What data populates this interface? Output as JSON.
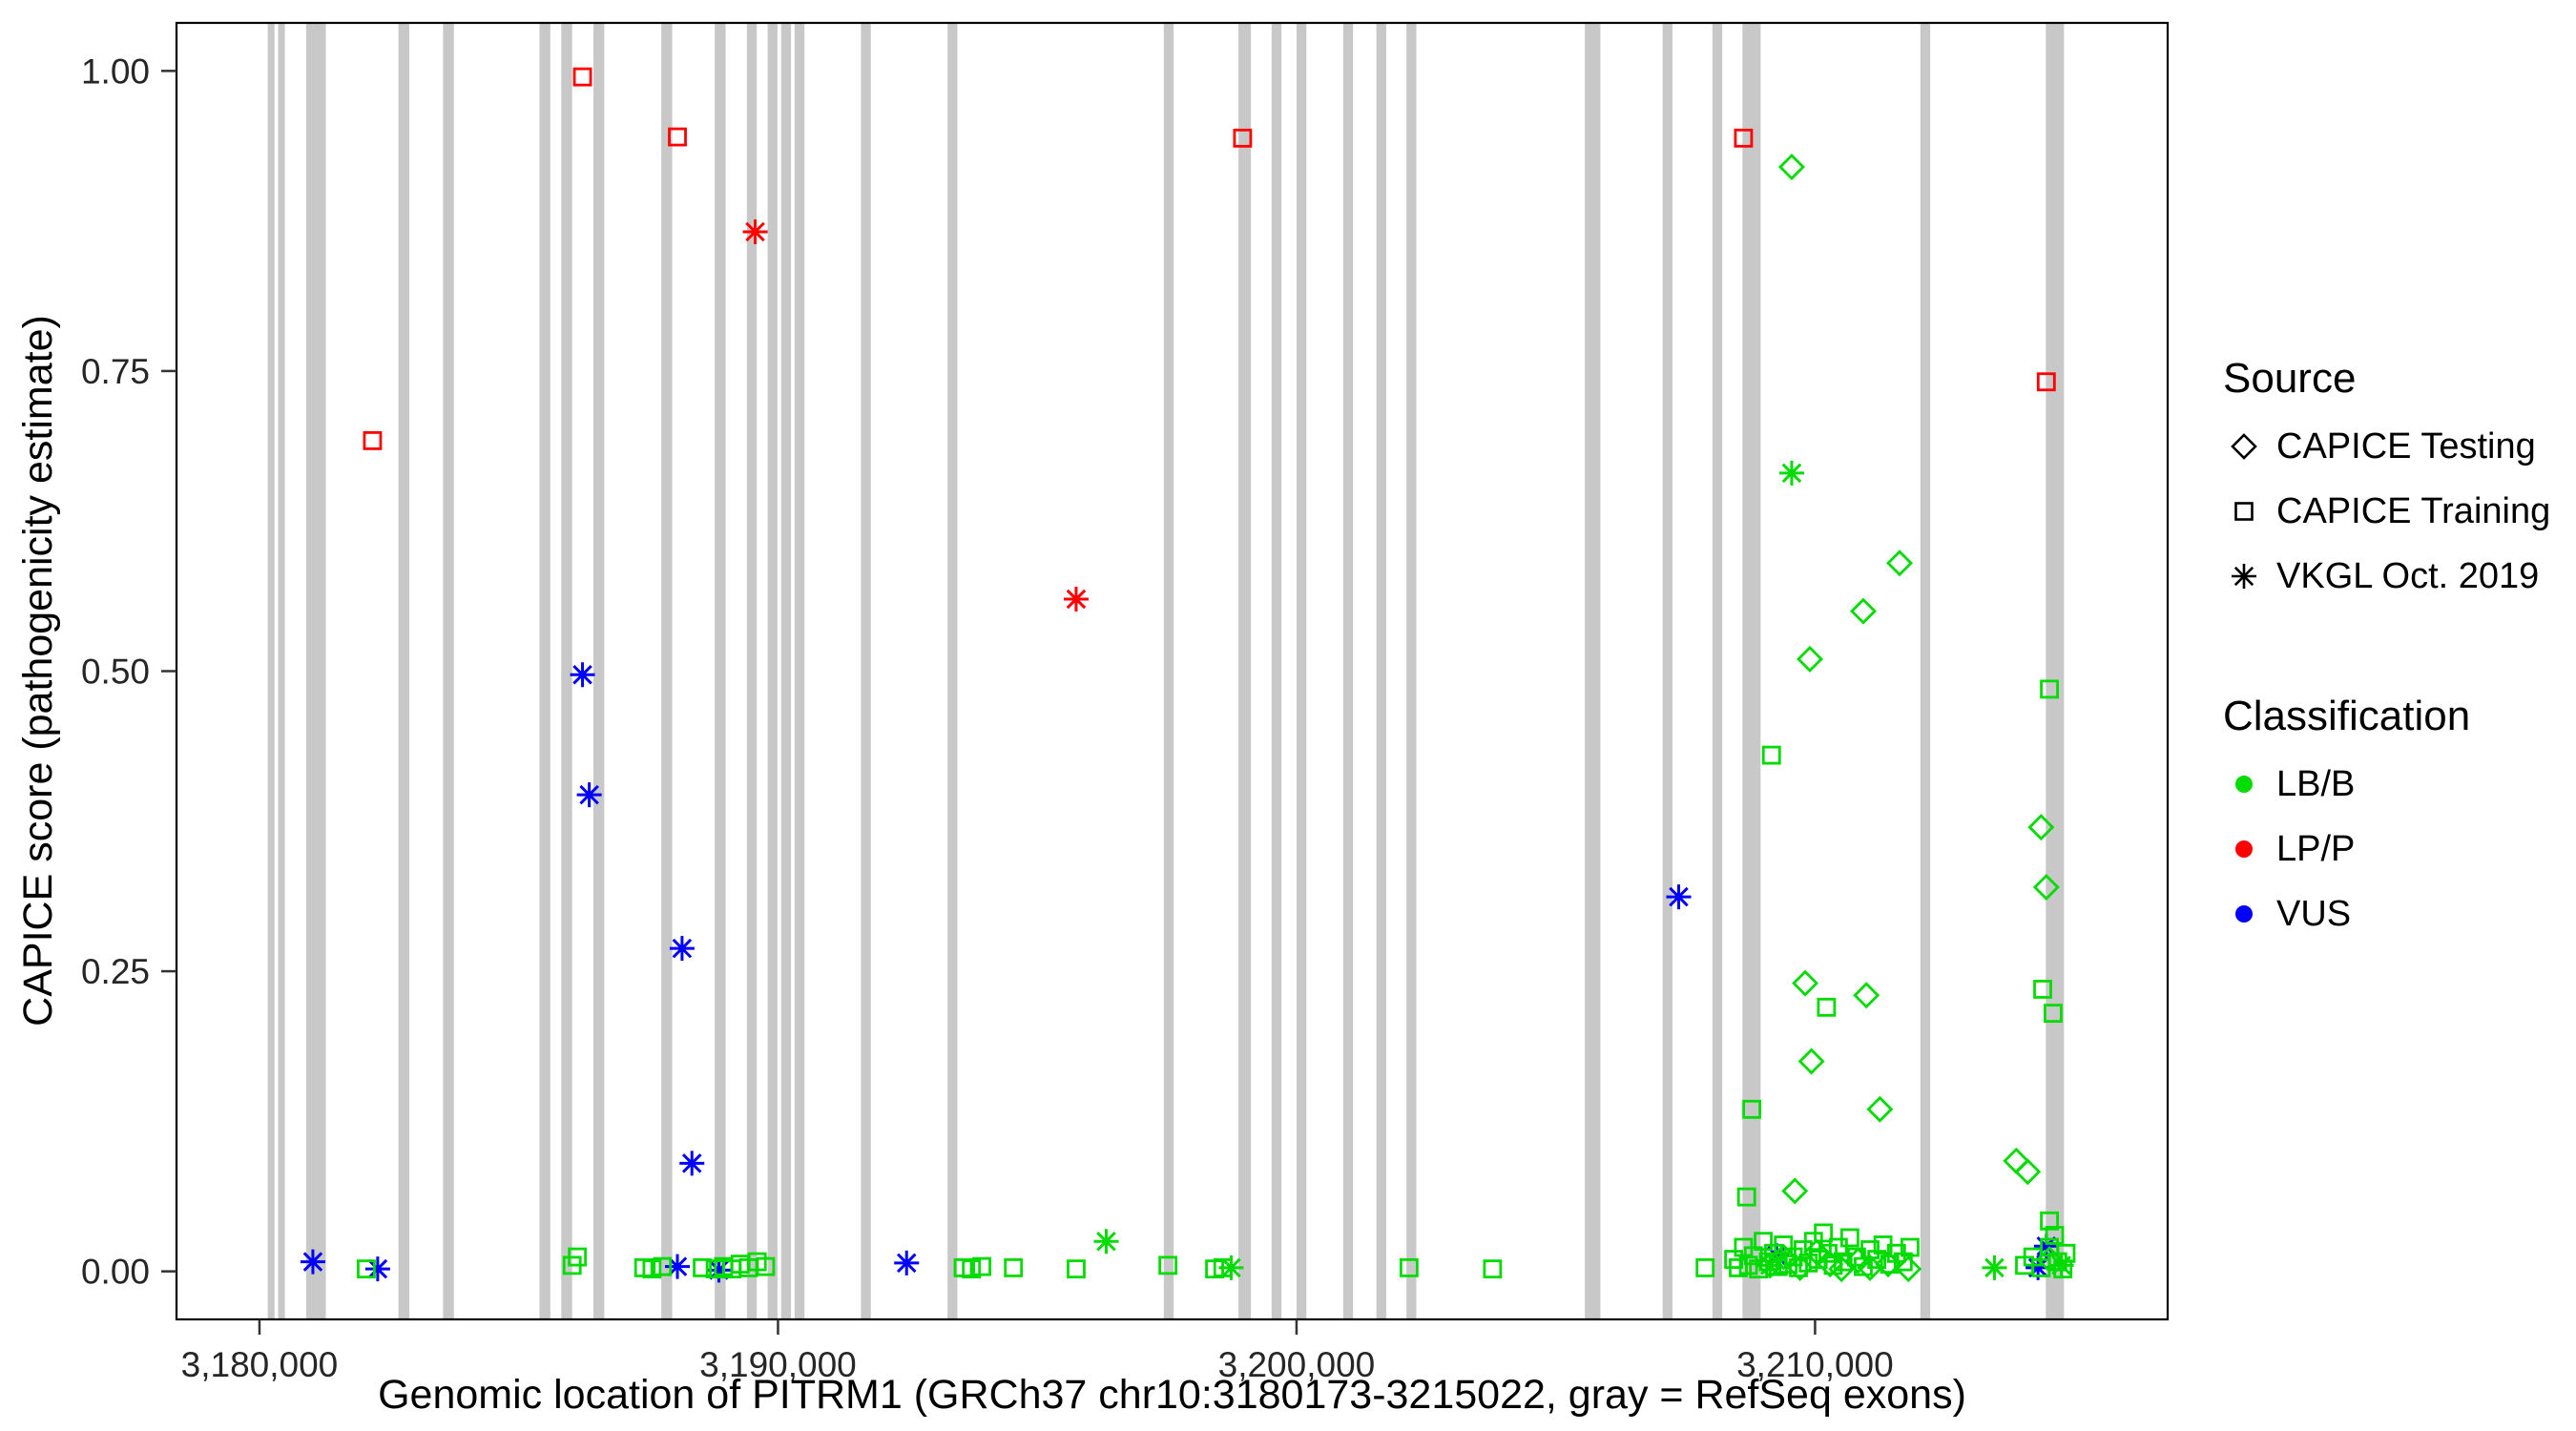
{
  "chart_data": {
    "type": "scatter",
    "title": "",
    "xlabel": "Genomic location of PITRM1 (GRCh37 chr10:3180173-3215022, gray = RefSeq exons)",
    "ylabel": "CAPICE score (pathogenicity estimate)",
    "xlim": [
      3178400,
      3216800
    ],
    "ylim": [
      -0.04,
      1.04
    ],
    "grid": false,
    "x_ticks": [
      {
        "value": 3180000,
        "label": "3,180,000"
      },
      {
        "value": 3190000,
        "label": "3,190,000"
      },
      {
        "value": 3200000,
        "label": "3,200,000"
      },
      {
        "value": 3210000,
        "label": "3,210,000"
      }
    ],
    "y_ticks": [
      {
        "value": 0.0,
        "label": "0.00"
      },
      {
        "value": 0.25,
        "label": "0.25"
      },
      {
        "value": 0.5,
        "label": "0.50"
      },
      {
        "value": 0.75,
        "label": "0.75"
      },
      {
        "value": 1.0,
        "label": "1.00"
      }
    ],
    "exon_color": "#C8C8C8",
    "colors": {
      "LB/B": "#00DC00",
      "LP/P": "#FF0000",
      "VUS": "#0000FF"
    },
    "shapes": {
      "CAPICE Testing": "diamond",
      "CAPICE Training": "square",
      "VKGL Oct. 2019": "asterisk"
    },
    "legend": {
      "source": {
        "title": "Source",
        "items": [
          {
            "label": "CAPICE Testing",
            "shape": "diamond"
          },
          {
            "label": "CAPICE Training",
            "shape": "square"
          },
          {
            "label": "VKGL Oct. 2019",
            "shape": "asterisk"
          }
        ]
      },
      "classification": {
        "title": "Classification",
        "items": [
          {
            "label": "LB/B",
            "color": "#00DC00"
          },
          {
            "label": "LP/P",
            "color": "#FF0000"
          },
          {
            "label": "VUS",
            "color": "#0000FF"
          }
        ]
      }
    },
    "exons": [
      [
        3180160,
        3180290
      ],
      [
        3180360,
        3180490
      ],
      [
        3180900,
        3181280
      ],
      [
        3182680,
        3182890
      ],
      [
        3183540,
        3183750
      ],
      [
        3185400,
        3185610
      ],
      [
        3185820,
        3186030
      ],
      [
        3186440,
        3186650
      ],
      [
        3187750,
        3187960
      ],
      [
        3188780,
        3188990
      ],
      [
        3189400,
        3189590
      ],
      [
        3189800,
        3189990
      ],
      [
        3190060,
        3190250
      ],
      [
        3190320,
        3190510
      ],
      [
        3191600,
        3191790
      ],
      [
        3193270,
        3193460
      ],
      [
        3197440,
        3197630
      ],
      [
        3198880,
        3199120
      ],
      [
        3199520,
        3199710
      ],
      [
        3200000,
        3200190
      ],
      [
        3200900,
        3201090
      ],
      [
        3201540,
        3201730
      ],
      [
        3202120,
        3202310
      ],
      [
        3205560,
        3205860
      ],
      [
        3207060,
        3207250
      ],
      [
        3208020,
        3208210
      ],
      [
        3208600,
        3208950
      ],
      [
        3212030,
        3212220
      ],
      [
        3214450,
        3214800
      ]
    ],
    "points": [
      {
        "x": 3182180,
        "y": 0.692,
        "source": "CAPICE Training",
        "classification": "LP/P"
      },
      {
        "x": 3186230,
        "y": 0.995,
        "source": "CAPICE Training",
        "classification": "LP/P"
      },
      {
        "x": 3188060,
        "y": 0.945,
        "source": "CAPICE Training",
        "classification": "LP/P"
      },
      {
        "x": 3189560,
        "y": 0.866,
        "source": "VKGL Oct. 2019",
        "classification": "LP/P"
      },
      {
        "x": 3195750,
        "y": 0.56,
        "source": "VKGL Oct. 2019",
        "classification": "LP/P"
      },
      {
        "x": 3198960,
        "y": 0.944,
        "source": "CAPICE Training",
        "classification": "LP/P"
      },
      {
        "x": 3208620,
        "y": 0.944,
        "source": "CAPICE Training",
        "classification": "LP/P"
      },
      {
        "x": 3214460,
        "y": 0.741,
        "source": "CAPICE Training",
        "classification": "LP/P"
      },
      {
        "x": 3181030,
        "y": 0.008,
        "source": "VKGL Oct. 2019",
        "classification": "VUS"
      },
      {
        "x": 3182280,
        "y": 0.002,
        "source": "VKGL Oct. 2019",
        "classification": "VUS"
      },
      {
        "x": 3186230,
        "y": 0.497,
        "source": "VKGL Oct. 2019",
        "classification": "VUS"
      },
      {
        "x": 3186360,
        "y": 0.397,
        "source": "VKGL Oct. 2019",
        "classification": "VUS"
      },
      {
        "x": 3188060,
        "y": 0.004,
        "source": "VKGL Oct. 2019",
        "classification": "VUS"
      },
      {
        "x": 3188150,
        "y": 0.269,
        "source": "VKGL Oct. 2019",
        "classification": "VUS"
      },
      {
        "x": 3188340,
        "y": 0.09,
        "source": "VKGL Oct. 2019",
        "classification": "VUS"
      },
      {
        "x": 3188860,
        "y": 0.001,
        "source": "VKGL Oct. 2019",
        "classification": "VUS"
      },
      {
        "x": 3192480,
        "y": 0.007,
        "source": "VKGL Oct. 2019",
        "classification": "VUS"
      },
      {
        "x": 3207370,
        "y": 0.312,
        "source": "VKGL Oct. 2019",
        "classification": "VUS"
      },
      {
        "x": 3209260,
        "y": 0.013,
        "source": "VKGL Oct. 2019",
        "classification": "VUS"
      },
      {
        "x": 3214300,
        "y": 0.003,
        "source": "VKGL Oct. 2019",
        "classification": "VUS"
      },
      {
        "x": 3214460,
        "y": 0.021,
        "source": "VKGL Oct. 2019",
        "classification": "VUS"
      },
      {
        "x": 3209550,
        "y": 0.92,
        "source": "CAPICE Testing",
        "classification": "LB/B"
      },
      {
        "x": 3209610,
        "y": 0.067,
        "source": "CAPICE Testing",
        "classification": "LB/B"
      },
      {
        "x": 3209710,
        "y": 0.003,
        "source": "CAPICE Testing",
        "classification": "LB/B"
      },
      {
        "x": 3209810,
        "y": 0.24,
        "source": "CAPICE Testing",
        "classification": "LB/B"
      },
      {
        "x": 3209900,
        "y": 0.51,
        "source": "CAPICE Testing",
        "classification": "LB/B"
      },
      {
        "x": 3209930,
        "y": 0.175,
        "source": "CAPICE Testing",
        "classification": "LB/B"
      },
      {
        "x": 3210030,
        "y": 0.016,
        "source": "CAPICE Testing",
        "classification": "LB/B"
      },
      {
        "x": 3210290,
        "y": 0.006,
        "source": "CAPICE Testing",
        "classification": "LB/B"
      },
      {
        "x": 3210510,
        "y": 0.002,
        "source": "CAPICE Testing",
        "classification": "LB/B"
      },
      {
        "x": 3210830,
        "y": 0.009,
        "source": "CAPICE Testing",
        "classification": "LB/B"
      },
      {
        "x": 3210930,
        "y": 0.55,
        "source": "CAPICE Testing",
        "classification": "LB/B"
      },
      {
        "x": 3210990,
        "y": 0.23,
        "source": "CAPICE Testing",
        "classification": "LB/B"
      },
      {
        "x": 3211060,
        "y": 0.003,
        "source": "CAPICE Testing",
        "classification": "LB/B"
      },
      {
        "x": 3211250,
        "y": 0.135,
        "source": "CAPICE Testing",
        "classification": "LB/B"
      },
      {
        "x": 3211410,
        "y": 0.006,
        "source": "CAPICE Testing",
        "classification": "LB/B"
      },
      {
        "x": 3211630,
        "y": 0.59,
        "source": "CAPICE Testing",
        "classification": "LB/B"
      },
      {
        "x": 3211800,
        "y": 0.002,
        "source": "CAPICE Testing",
        "classification": "LB/B"
      },
      {
        "x": 3209130,
        "y": 0.005,
        "source": "CAPICE Testing",
        "classification": "LB/B"
      },
      {
        "x": 3209390,
        "y": 0.012,
        "source": "CAPICE Testing",
        "classification": "LB/B"
      },
      {
        "x": 3213880,
        "y": 0.092,
        "source": "CAPICE Testing",
        "classification": "LB/B"
      },
      {
        "x": 3214100,
        "y": 0.083,
        "source": "CAPICE Testing",
        "classification": "LB/B"
      },
      {
        "x": 3214360,
        "y": 0.37,
        "source": "CAPICE Testing",
        "classification": "LB/B"
      },
      {
        "x": 3214460,
        "y": 0.32,
        "source": "CAPICE Testing",
        "classification": "LB/B"
      },
      {
        "x": 3214520,
        "y": 0.01,
        "source": "CAPICE Testing",
        "classification": "LB/B"
      },
      {
        "x": 3196330,
        "y": 0.025,
        "source": "VKGL Oct. 2019",
        "classification": "LB/B"
      },
      {
        "x": 3198740,
        "y": 0.003,
        "source": "VKGL Oct. 2019",
        "classification": "LB/B"
      },
      {
        "x": 3209130,
        "y": 0.005,
        "source": "VKGL Oct. 2019",
        "classification": "LB/B"
      },
      {
        "x": 3209550,
        "y": 0.665,
        "source": "VKGL Oct. 2019",
        "classification": "LB/B"
      },
      {
        "x": 3213460,
        "y": 0.003,
        "source": "VKGL Oct. 2019",
        "classification": "LB/B"
      },
      {
        "x": 3214750,
        "y": 0.005,
        "source": "VKGL Oct. 2019",
        "classification": "LB/B"
      },
      {
        "x": 3182060,
        "y": 0.002,
        "source": "CAPICE Training",
        "classification": "LB/B"
      },
      {
        "x": 3186030,
        "y": 0.005,
        "source": "CAPICE Training",
        "classification": "LB/B"
      },
      {
        "x": 3186130,
        "y": 0.012,
        "source": "CAPICE Training",
        "classification": "LB/B"
      },
      {
        "x": 3187410,
        "y": 0.003,
        "source": "CAPICE Training",
        "classification": "LB/B"
      },
      {
        "x": 3187570,
        "y": 0.002,
        "source": "CAPICE Training",
        "classification": "LB/B"
      },
      {
        "x": 3187770,
        "y": 0.004,
        "source": "CAPICE Training",
        "classification": "LB/B"
      },
      {
        "x": 3188540,
        "y": 0.003,
        "source": "CAPICE Training",
        "classification": "LB/B"
      },
      {
        "x": 3188790,
        "y": 0.002,
        "source": "CAPICE Training",
        "classification": "LB/B"
      },
      {
        "x": 3188950,
        "y": 0.004,
        "source": "CAPICE Training",
        "classification": "LB/B"
      },
      {
        "x": 3189110,
        "y": 0.002,
        "source": "CAPICE Training",
        "classification": "LB/B"
      },
      {
        "x": 3189270,
        "y": 0.006,
        "source": "CAPICE Training",
        "classification": "LB/B"
      },
      {
        "x": 3189430,
        "y": 0.003,
        "source": "CAPICE Training",
        "classification": "LB/B"
      },
      {
        "x": 3189600,
        "y": 0.008,
        "source": "CAPICE Training",
        "classification": "LB/B"
      },
      {
        "x": 3189760,
        "y": 0.004,
        "source": "CAPICE Training",
        "classification": "LB/B"
      },
      {
        "x": 3193570,
        "y": 0.003,
        "source": "CAPICE Training",
        "classification": "LB/B"
      },
      {
        "x": 3193730,
        "y": 0.002,
        "source": "CAPICE Training",
        "classification": "LB/B"
      },
      {
        "x": 3193930,
        "y": 0.004,
        "source": "CAPICE Training",
        "classification": "LB/B"
      },
      {
        "x": 3194540,
        "y": 0.003,
        "source": "CAPICE Training",
        "classification": "LB/B"
      },
      {
        "x": 3195750,
        "y": 0.002,
        "source": "CAPICE Training",
        "classification": "LB/B"
      },
      {
        "x": 3197520,
        "y": 0.005,
        "source": "CAPICE Training",
        "classification": "LB/B"
      },
      {
        "x": 3198420,
        "y": 0.002,
        "source": "CAPICE Training",
        "classification": "LB/B"
      },
      {
        "x": 3198580,
        "y": 0.003,
        "source": "CAPICE Training",
        "classification": "LB/B"
      },
      {
        "x": 3202170,
        "y": 0.003,
        "source": "CAPICE Training",
        "classification": "LB/B"
      },
      {
        "x": 3203780,
        "y": 0.002,
        "source": "CAPICE Training",
        "classification": "LB/B"
      },
      {
        "x": 3207880,
        "y": 0.003,
        "source": "CAPICE Training",
        "classification": "LB/B"
      },
      {
        "x": 3208680,
        "y": 0.062,
        "source": "CAPICE Training",
        "classification": "LB/B"
      },
      {
        "x": 3208780,
        "y": 0.135,
        "source": "CAPICE Training",
        "classification": "LB/B"
      },
      {
        "x": 3209160,
        "y": 0.43,
        "source": "CAPICE Training",
        "classification": "LB/B"
      },
      {
        "x": 3210220,
        "y": 0.22,
        "source": "CAPICE Training",
        "classification": "LB/B"
      },
      {
        "x": 3214390,
        "y": 0.235,
        "source": "CAPICE Training",
        "classification": "LB/B"
      },
      {
        "x": 3214520,
        "y": 0.485,
        "source": "CAPICE Training",
        "classification": "LB/B"
      },
      {
        "x": 3214520,
        "y": 0.042,
        "source": "CAPICE Training",
        "classification": "LB/B"
      },
      {
        "x": 3214590,
        "y": 0.215,
        "source": "CAPICE Training",
        "classification": "LB/B"
      },
      {
        "x": 3208430,
        "y": 0.01,
        "source": "CAPICE Training",
        "classification": "LB/B"
      },
      {
        "x": 3208520,
        "y": 0.003,
        "source": "CAPICE Training",
        "classification": "LB/B"
      },
      {
        "x": 3208620,
        "y": 0.02,
        "source": "CAPICE Training",
        "classification": "LB/B"
      },
      {
        "x": 3208715,
        "y": 0.005,
        "source": "CAPICE Training",
        "classification": "LB/B"
      },
      {
        "x": 3208810,
        "y": 0.013,
        "source": "CAPICE Training",
        "classification": "LB/B"
      },
      {
        "x": 3208910,
        "y": 0.002,
        "source": "CAPICE Training",
        "classification": "LB/B"
      },
      {
        "x": 3209000,
        "y": 0.025,
        "source": "CAPICE Training",
        "classification": "LB/B"
      },
      {
        "x": 3209100,
        "y": 0.008,
        "source": "CAPICE Training",
        "classification": "LB/B"
      },
      {
        "x": 3209200,
        "y": 0.015,
        "source": "CAPICE Training",
        "classification": "LB/B"
      },
      {
        "x": 3209290,
        "y": 0.004,
        "source": "CAPICE Training",
        "classification": "LB/B"
      },
      {
        "x": 3209390,
        "y": 0.022,
        "source": "CAPICE Training",
        "classification": "LB/B"
      },
      {
        "x": 3209480,
        "y": 0.006,
        "source": "CAPICE Training",
        "classification": "LB/B"
      },
      {
        "x": 3209580,
        "y": 0.012,
        "source": "CAPICE Training",
        "classification": "LB/B"
      },
      {
        "x": 3209680,
        "y": 0.003,
        "source": "CAPICE Training",
        "classification": "LB/B"
      },
      {
        "x": 3209770,
        "y": 0.018,
        "source": "CAPICE Training",
        "classification": "LB/B"
      },
      {
        "x": 3209870,
        "y": 0.007,
        "source": "CAPICE Training",
        "classification": "LB/B"
      },
      {
        "x": 3209970,
        "y": 0.025,
        "source": "CAPICE Training",
        "classification": "LB/B"
      },
      {
        "x": 3210060,
        "y": 0.01,
        "source": "CAPICE Training",
        "classification": "LB/B"
      },
      {
        "x": 3210160,
        "y": 0.032,
        "source": "CAPICE Training",
        "classification": "LB/B"
      },
      {
        "x": 3210250,
        "y": 0.015,
        "source": "CAPICE Training",
        "classification": "LB/B"
      },
      {
        "x": 3210350,
        "y": 0.005,
        "source": "CAPICE Training",
        "classification": "LB/B"
      },
      {
        "x": 3210450,
        "y": 0.02,
        "source": "CAPICE Training",
        "classification": "LB/B"
      },
      {
        "x": 3210540,
        "y": 0.008,
        "source": "CAPICE Training",
        "classification": "LB/B"
      },
      {
        "x": 3210670,
        "y": 0.028,
        "source": "CAPICE Training",
        "classification": "LB/B"
      },
      {
        "x": 3210800,
        "y": 0.012,
        "source": "CAPICE Training",
        "classification": "LB/B"
      },
      {
        "x": 3210930,
        "y": 0.004,
        "source": "CAPICE Training",
        "classification": "LB/B"
      },
      {
        "x": 3211060,
        "y": 0.018,
        "source": "CAPICE Training",
        "classification": "LB/B"
      },
      {
        "x": 3211190,
        "y": 0.01,
        "source": "CAPICE Training",
        "classification": "LB/B"
      },
      {
        "x": 3211310,
        "y": 0.022,
        "source": "CAPICE Training",
        "classification": "LB/B"
      },
      {
        "x": 3211440,
        "y": 0.006,
        "source": "CAPICE Training",
        "classification": "LB/B"
      },
      {
        "x": 3211570,
        "y": 0.015,
        "source": "CAPICE Training",
        "classification": "LB/B"
      },
      {
        "x": 3211700,
        "y": 0.008,
        "source": "CAPICE Training",
        "classification": "LB/B"
      },
      {
        "x": 3211830,
        "y": 0.02,
        "source": "CAPICE Training",
        "classification": "LB/B"
      },
      {
        "x": 3214040,
        "y": 0.005,
        "source": "CAPICE Training",
        "classification": "LB/B"
      },
      {
        "x": 3214200,
        "y": 0.012,
        "source": "CAPICE Training",
        "classification": "LB/B"
      },
      {
        "x": 3214360,
        "y": 0.003,
        "source": "CAPICE Training",
        "classification": "LB/B"
      },
      {
        "x": 3214520,
        "y": 0.02,
        "source": "CAPICE Training",
        "classification": "LB/B"
      },
      {
        "x": 3214620,
        "y": 0.03,
        "source": "CAPICE Training",
        "classification": "LB/B"
      },
      {
        "x": 3214680,
        "y": 0.008,
        "source": "CAPICE Training",
        "classification": "LB/B"
      },
      {
        "x": 3214780,
        "y": 0.002,
        "source": "CAPICE Training",
        "classification": "LB/B"
      },
      {
        "x": 3214840,
        "y": 0.015,
        "source": "CAPICE Training",
        "classification": "LB/B"
      }
    ]
  }
}
